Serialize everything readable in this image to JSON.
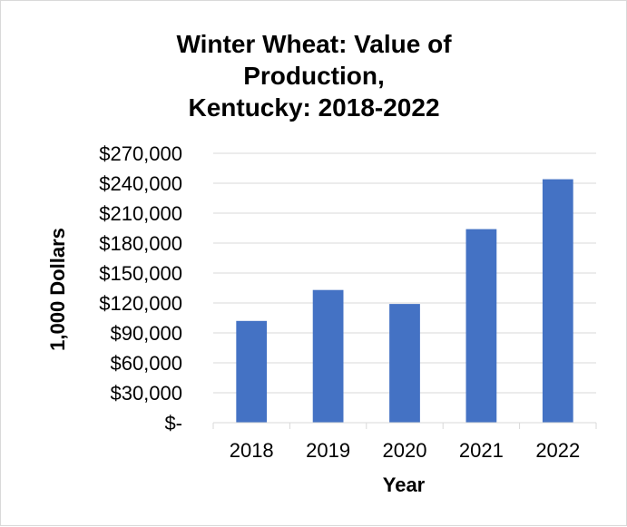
{
  "chart_data": {
    "type": "bar",
    "title_lines": [
      "Winter Wheat: Value of",
      "Production,",
      "Kentucky: 2018-2022"
    ],
    "xlabel": "Year",
    "ylabel": "1,000 Dollars",
    "categories": [
      "2018",
      "2019",
      "2020",
      "2021",
      "2022"
    ],
    "values": [
      102000,
      133000,
      119000,
      194000,
      244000
    ],
    "ylim": [
      0,
      270000
    ],
    "y_ticks": [
      0,
      30000,
      60000,
      90000,
      120000,
      150000,
      180000,
      210000,
      240000,
      270000
    ],
    "y_tick_labels": [
      "$-",
      "$30,000",
      "$60,000",
      "$90,000",
      "$120,000",
      "$150,000",
      "$180,000",
      "$210,000",
      "$240,000",
      "$270,000"
    ],
    "grid": true,
    "legend": "none",
    "bar_color": "#4472c4",
    "grid_color": "#d9d9d9"
  }
}
